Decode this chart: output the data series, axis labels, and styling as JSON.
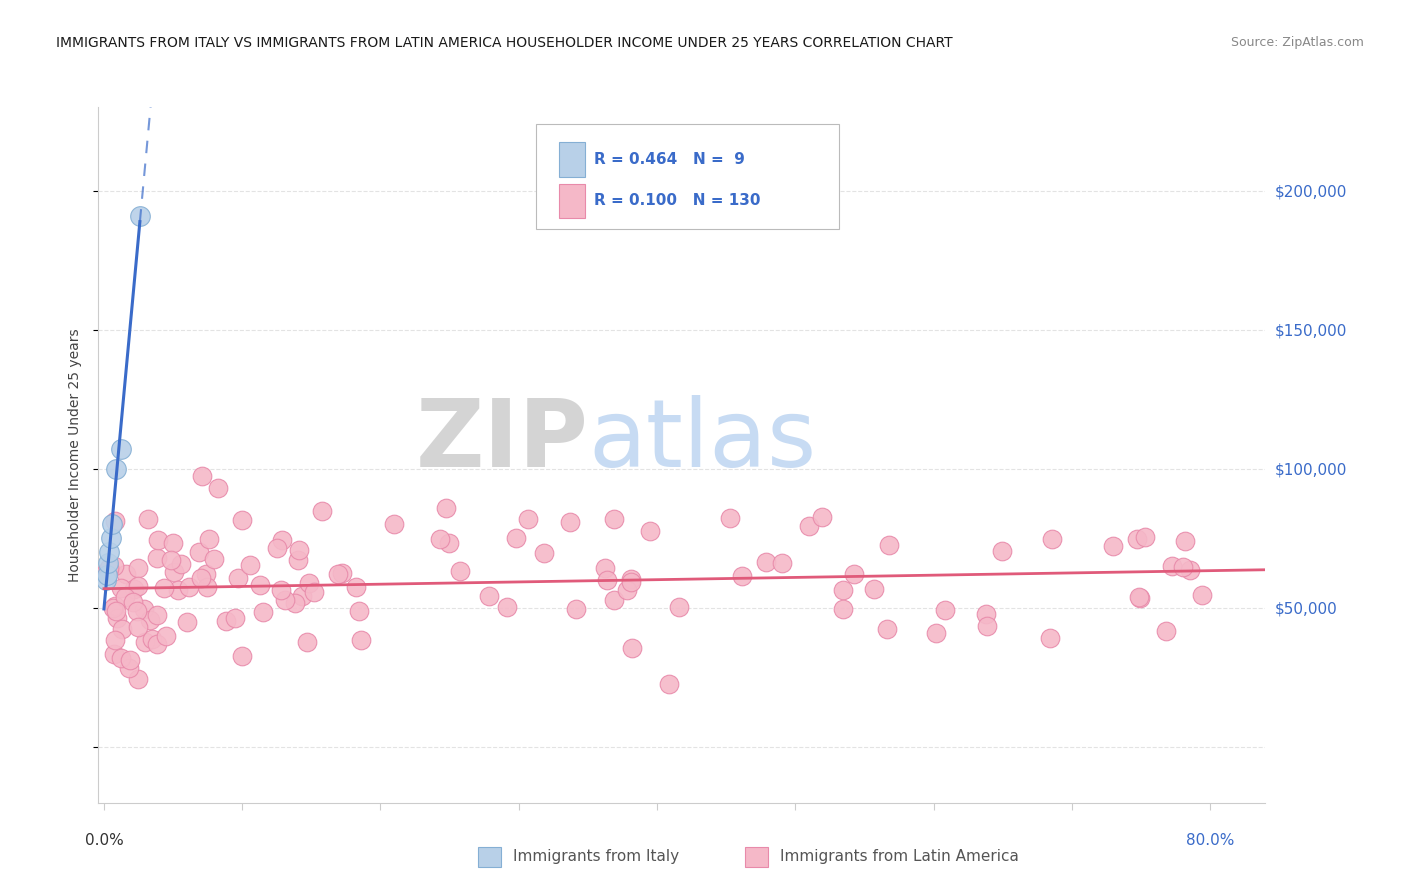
{
  "title": "IMMIGRANTS FROM ITALY VS IMMIGRANTS FROM LATIN AMERICA HOUSEHOLDER INCOME UNDER 25 YEARS CORRELATION CHART",
  "source": "Source: ZipAtlas.com",
  "ylabel": "Householder Income Under 25 years",
  "legend_italy_R": "0.464",
  "legend_italy_N": "9",
  "legend_latinam_R": "0.100",
  "legend_latinam_N": "130",
  "legend_italy_label": "Immigrants from Italy",
  "legend_latinam_label": "Immigrants from Latin America",
  "italy_color": "#b8d0e8",
  "italy_edge_color": "#85afd4",
  "latinam_color": "#f5b8c8",
  "latinam_edge_color": "#e88aaa",
  "italy_line_color": "#3a6bc9",
  "latinam_line_color": "#e05a7a",
  "right_ytick_labels": [
    "$50,000",
    "$100,000",
    "$150,000",
    "$200,000"
  ],
  "right_ytick_values": [
    50000,
    100000,
    150000,
    200000
  ],
  "ylim": [
    -20000,
    230000
  ],
  "xlim": [
    -0.004,
    0.84
  ],
  "grid_color": "#dddddd",
  "spine_color": "#cccccc",
  "title_color": "#1a1a1a",
  "source_color": "#888888",
  "right_label_color": "#3a6bc9",
  "bottom_label_left_color": "#333333",
  "bottom_label_right_color": "#3a6bc9"
}
